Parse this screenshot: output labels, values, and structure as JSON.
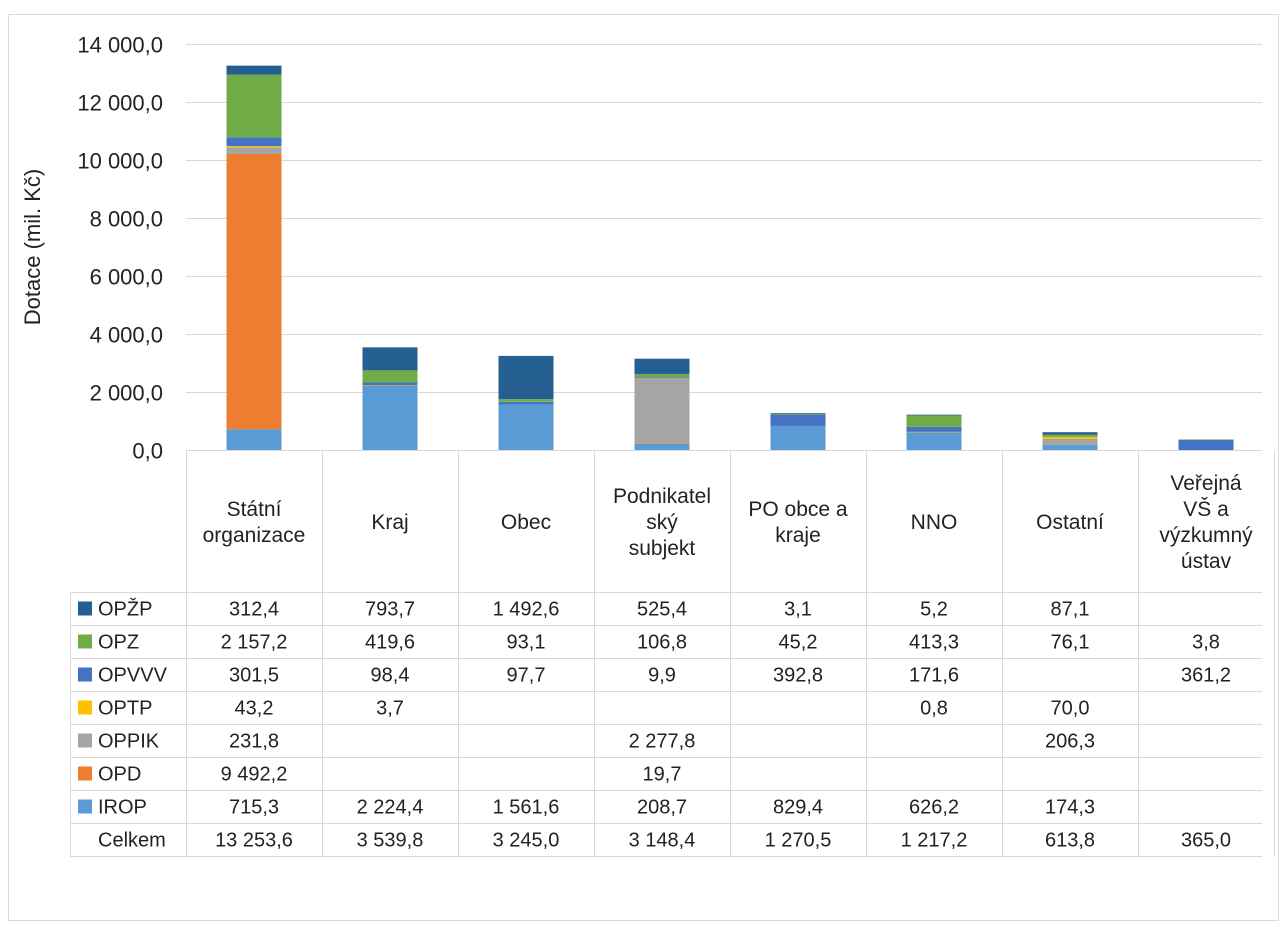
{
  "chart_data": {
    "type": "bar",
    "stacked": true,
    "ylabel": "Dotace (mil. Kč)",
    "ylim": [
      0,
      14000
    ],
    "y_ticks": [
      "0,0",
      "2 000,0",
      "4 000,0",
      "6 000,0",
      "8 000,0",
      "10 000,0",
      "12 000,0",
      "14 000,0"
    ],
    "grid": true,
    "legend": "data-table",
    "categories": [
      [
        "Státní",
        "organizace"
      ],
      [
        "Kraj"
      ],
      [
        "Obec"
      ],
      [
        "Podnikatel",
        "ský",
        "subjekt"
      ],
      [
        "PO obce a",
        "kraje"
      ],
      [
        "NNO"
      ],
      [
        "Ostatní"
      ],
      [
        "Veřejná",
        "VŠ a",
        "výzkumný",
        "ústav"
      ]
    ],
    "series": [
      {
        "name": "IROP",
        "color": "#5b9bd5",
        "values": [
          715.3,
          2224.4,
          1561.6,
          208.7,
          829.4,
          626.2,
          174.3,
          null
        ],
        "labels": [
          "715,3",
          "2 224,4",
          "1 561,6",
          "208,7",
          "829,4",
          "626,2",
          "174,3",
          ""
        ]
      },
      {
        "name": "OPD",
        "color": "#ed7d31",
        "values": [
          9492.2,
          null,
          null,
          19.7,
          null,
          null,
          null,
          null
        ],
        "labels": [
          "9 492,2",
          "",
          "",
          "19,7",
          "",
          "",
          "",
          ""
        ]
      },
      {
        "name": "OPPIK",
        "color": "#a5a5a5",
        "values": [
          231.8,
          null,
          null,
          2277.8,
          null,
          null,
          206.3,
          null
        ],
        "labels": [
          "231,8",
          "",
          "",
          "2 277,8",
          "",
          "",
          "206,3",
          ""
        ]
      },
      {
        "name": "OPTP",
        "color": "#ffc000",
        "values": [
          43.2,
          3.7,
          null,
          null,
          null,
          0.8,
          70.0,
          null
        ],
        "labels": [
          "43,2",
          "3,7",
          "",
          "",
          "",
          "0,8",
          "70,0",
          ""
        ]
      },
      {
        "name": "OPVVV",
        "color": "#4472c4",
        "values": [
          301.5,
          98.4,
          97.7,
          9.9,
          392.8,
          171.6,
          null,
          361.2
        ],
        "labels": [
          "301,5",
          "98,4",
          "97,7",
          "9,9",
          "392,8",
          "171,6",
          "",
          "361,2"
        ]
      },
      {
        "name": "OPZ",
        "color": "#70ad47",
        "values": [
          2157.2,
          419.6,
          93.1,
          106.8,
          45.2,
          413.3,
          76.1,
          3.8
        ],
        "labels": [
          "2 157,2",
          "419,6",
          "93,1",
          "106,8",
          "45,2",
          "413,3",
          "76,1",
          "3,8"
        ]
      },
      {
        "name": "OPŽP",
        "color": "#255e91",
        "values": [
          312.4,
          793.7,
          1492.6,
          525.4,
          3.1,
          5.2,
          87.1,
          null
        ],
        "labels": [
          "312,4",
          "793,7",
          "1 492,6",
          "525,4",
          "3,1",
          "5,2",
          "87,1",
          ""
        ]
      }
    ],
    "table_row_order": [
      "OPŽP",
      "OPZ",
      "OPVVV",
      "OPTP",
      "OPPIK",
      "OPD",
      "IROP"
    ],
    "total_label": "Celkem",
    "totals": [
      "13 253,6",
      "3 539,8",
      "3 245,0",
      "3 148,4",
      "1 270,5",
      "1 217,2",
      "613,8",
      "365,0"
    ]
  }
}
